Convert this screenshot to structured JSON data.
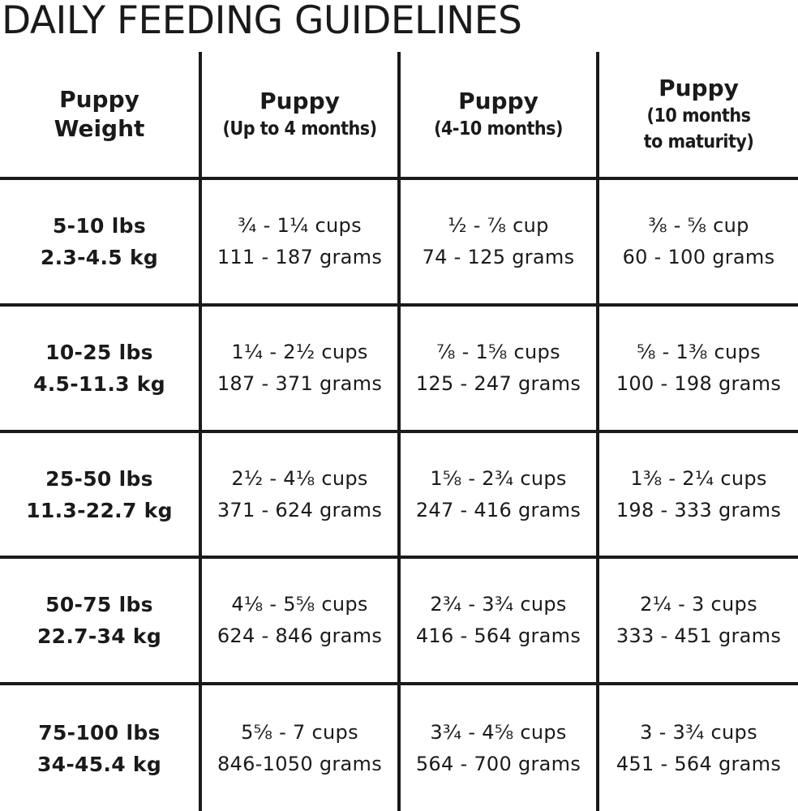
{
  "title": "DAILY FEEDING GUIDELINES",
  "headers": [
    {
      "main": "Puppy",
      "sub": "Weight"
    },
    {
      "main": "Puppy",
      "sub": "(Up to 4 months)"
    },
    {
      "main": "Puppy",
      "sub": "(4-10 months)"
    },
    {
      "main": "Puppy",
      "sub": "(10 months",
      "sub2": "to maturity)"
    }
  ],
  "rows": [
    {
      "weight": {
        "lbs": "5-10 lbs",
        "kg": "2.3-4.5 kg"
      },
      "cells": [
        {
          "cups": "¾ - 1¼ cups",
          "grams": "111 - 187 grams"
        },
        {
          "cups": "½ - ⅞ cup",
          "grams": "74 - 125 grams"
        },
        {
          "cups": "⅜ - ⅝ cup",
          "grams": "60 - 100 grams"
        }
      ]
    },
    {
      "weight": {
        "lbs": "10-25 lbs",
        "kg": "4.5-11.3 kg"
      },
      "cells": [
        {
          "cups": "1¼ - 2½ cups",
          "grams": "187 - 371 grams"
        },
        {
          "cups": "⅞ - 1⅝ cups",
          "grams": "125 - 247 grams"
        },
        {
          "cups": "⅝ - 1⅜ cups",
          "grams": "100 - 198 grams"
        }
      ]
    },
    {
      "weight": {
        "lbs": "25-50 lbs",
        "kg": "11.3-22.7 kg"
      },
      "cells": [
        {
          "cups": "2½ - 4⅛ cups",
          "grams": "371 - 624 grams"
        },
        {
          "cups": "1⅝ - 2¾ cups",
          "grams": "247 - 416 grams"
        },
        {
          "cups": "1⅜ - 2¼ cups",
          "grams": "198 - 333 grams"
        }
      ]
    },
    {
      "weight": {
        "lbs": "50-75 lbs",
        "kg": "22.7-34 kg"
      },
      "cells": [
        {
          "cups": "4⅛ - 5⅝ cups",
          "grams": "624 - 846 grams"
        },
        {
          "cups": "2¾ - 3¾ cups",
          "grams": "416 - 564 grams"
        },
        {
          "cups": "2¼ - 3 cups",
          "grams": "333 - 451 grams"
        }
      ]
    },
    {
      "weight": {
        "lbs": "75-100 lbs",
        "kg": "34-45.4 kg"
      },
      "cells": [
        {
          "cups": "5⅝ - 7 cups",
          "grams": "846-1050 grams"
        },
        {
          "cups": "3¾ - 4⅝ cups",
          "grams": "564 - 700 grams"
        },
        {
          "cups": "3 - 3¾ cups",
          "grams": "451 - 564 grams"
        }
      ]
    }
  ]
}
